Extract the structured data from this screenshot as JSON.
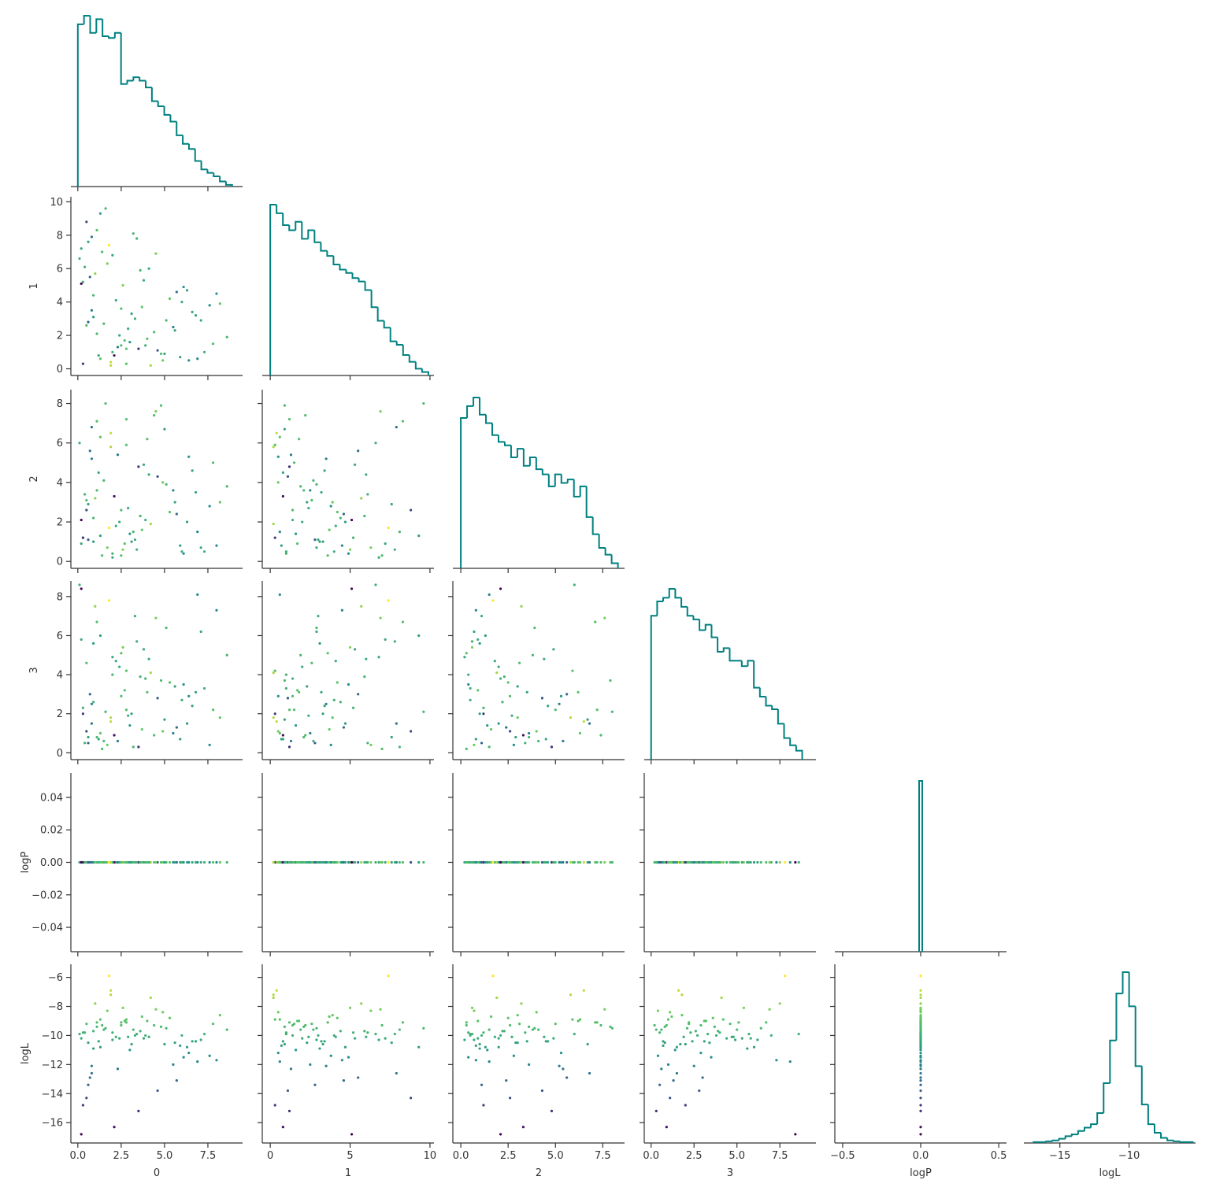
{
  "chart_data": {
    "type": "pairplot",
    "hist_color": "#008080",
    "colormap": [
      "#440154",
      "#3b528b",
      "#21918c",
      "#5ec962",
      "#fde725"
    ],
    "color_by": 5,
    "variables": [
      {
        "name": "0",
        "xlim": [
          -0.4,
          9.5
        ],
        "xticks": [
          {
            "value": 0,
            "label": "0.0"
          },
          {
            "value": 2.5,
            "label": "2.5"
          },
          {
            "value": 5,
            "label": "5.0"
          },
          {
            "value": 7.5,
            "label": "7.5"
          }
        ],
        "hist": {
          "bins": [
            0,
            0.356,
            0.712,
            1.068,
            1.424,
            1.78,
            2.136,
            2.492,
            2.848,
            3.204,
            3.56,
            3.916,
            4.272,
            4.628,
            4.984,
            5.34,
            5.696,
            6.052,
            6.408,
            6.764,
            7.12,
            7.476,
            7.832,
            8.188,
            8.544,
            8.9
          ],
          "counts": [
            95,
            100,
            90,
            98,
            88,
            87,
            90,
            60,
            62,
            64,
            62,
            58,
            50,
            47,
            42,
            38,
            30,
            25,
            22,
            15,
            10,
            8,
            6,
            3,
            1
          ]
        },
        "samples": [
          0.3,
          1.2,
          2.5,
          0.8,
          3.9,
          5.1,
          1.7,
          6.4,
          2.2,
          0.5,
          4.4,
          7.3,
          1.0,
          3.1,
          2.8,
          5.7,
          0.2,
          1.5,
          4.0,
          6.9,
          8.2,
          2.0,
          3.5,
          0.9,
          1.3,
          4.8,
          5.5,
          2.6,
          0.6,
          7.8,
          3.3,
          1.9,
          6.1,
          0.4,
          2.4,
          4.6,
          1.1,
          3.7,
          5.9,
          8.6,
          0.7,
          2.9,
          1.4,
          4.2,
          6.6,
          0.1,
          3.0,
          5.3,
          2.1,
          7.1,
          1.6,
          0.9,
          4.9,
          3.6,
          2.3,
          6.0,
          0.5,
          1.8,
          5.0,
          7.6,
          2.7,
          3.8,
          0.3,
          1.1,
          4.5,
          6.3,
          2.0,
          0.8,
          3.2,
          5.6,
          1.3,
          8.0,
          2.5,
          4.1,
          0.6,
          1.9,
          3.4,
          6.8,
          0.2,
          2.8
        ]
      },
      {
        "name": "1",
        "xlim": [
          -0.5,
          10.25
        ],
        "xticks": [
          0,
          5,
          10
        ],
        "ylim": [
          -0.4,
          10.3
        ],
        "yticks": [
          0,
          2,
          4,
          6,
          8,
          10
        ],
        "hist": {
          "bins": [
            0,
            0.396,
            0.792,
            1.188,
            1.584,
            1.98,
            2.376,
            2.772,
            3.168,
            3.564,
            3.96,
            4.356,
            4.752,
            5.148,
            5.544,
            5.94,
            6.336,
            6.732,
            7.128,
            7.524,
            7.92,
            8.316,
            8.712,
            9.108,
            9.504,
            9.9
          ],
          "counts": [
            100,
            95,
            88,
            85,
            90,
            80,
            85,
            78,
            73,
            70,
            65,
            62,
            60,
            57,
            55,
            50,
            40,
            32,
            28,
            20,
            18,
            12,
            8,
            4,
            2
          ]
        },
        "samples": [
          5.2,
          0.8,
          3.6,
          7.9,
          1.4,
          2.9,
          6.3,
          0.5,
          4.1,
          8.8,
          2.2,
          1.0,
          5.7,
          3.3,
          0.3,
          4.6,
          7.2,
          2.7,
          1.8,
          0.6,
          3.9,
          6.8,
          1.2,
          4.4,
          9.3,
          0.9,
          2.5,
          5.0,
          7.6,
          1.5,
          3.0,
          0.4,
          4.9,
          6.1,
          2.0,
          1.1,
          8.3,
          3.7,
          0.7,
          1.9,
          5.5,
          2.4,
          7.0,
          0.2,
          3.4,
          6.6,
          1.6,
          4.2,
          0.8,
          2.9,
          9.6,
          3.1,
          0.5,
          5.9,
          1.3,
          4.0,
          2.6,
          7.4,
          0.9,
          3.8,
          1.7,
          5.3,
          0.3,
          2.1,
          6.9,
          4.7,
          1.0,
          3.5,
          8.1,
          2.3,
          0.6,
          4.5,
          1.4,
          6.0,
          2.8,
          0.2,
          7.8,
          3.2,
          5.1,
          1.2
        ]
      },
      {
        "name": "2",
        "xlim": [
          -0.42,
          8.65
        ],
        "xticks": [
          {
            "value": 0,
            "label": "0.0"
          },
          {
            "value": 2.5,
            "label": "2.5"
          },
          {
            "value": 5,
            "label": "5.0"
          },
          {
            "value": 7.5,
            "label": "7.5"
          }
        ],
        "ylim": [
          -0.35,
          8.7
        ],
        "yticks": [
          0,
          2,
          4,
          6,
          8
        ],
        "hist": {
          "bins": [
            0,
            0.332,
            0.664,
            0.996,
            1.328,
            1.66,
            1.992,
            2.324,
            2.656,
            2.988,
            3.32,
            3.652,
            3.984,
            4.316,
            4.648,
            4.98,
            5.312,
            5.644,
            5.976,
            6.308,
            6.64,
            6.972,
            7.304,
            7.636,
            7.968,
            8.3
          ],
          "counts": [
            88,
            95,
            100,
            90,
            85,
            78,
            74,
            72,
            65,
            70,
            60,
            65,
            58,
            55,
            48,
            55,
            50,
            52,
            42,
            48,
            30,
            20,
            12,
            8,
            3
          ]
        },
        "samples": [
          1.2,
          4.5,
          0.3,
          6.8,
          2.1,
          3.9,
          0.7,
          5.3,
          1.8,
          2.6,
          7.4,
          0.5,
          3.2,
          1.0,
          5.9,
          2.4,
          0.9,
          4.1,
          6.2,
          1.5,
          3.0,
          0.2,
          4.8,
          2.2,
          1.3,
          7.9,
          3.6,
          0.6,
          2.9,
          5.0,
          1.1,
          6.5,
          0.4,
          3.4,
          2.0,
          4.3,
          7.1,
          1.6,
          0.8,
          3.8,
          5.6,
          2.7,
          0.3,
          1.9,
          4.6,
          6.0,
          1.4,
          2.5,
          3.3,
          0.7,
          8.0,
          1.0,
          4.0,
          2.3,
          5.4,
          0.5,
          3.1,
          1.7,
          6.7,
          2.8,
          0.9,
          4.9,
          1.2,
          3.6,
          7.6,
          2.0,
          0.4,
          5.2,
          1.5,
          3.0,
          6.3,
          0.8,
          2.6,
          4.4,
          1.1,
          5.8,
          0.6,
          3.5,
          2.1,
          7.2
        ]
      },
      {
        "name": "3",
        "xlim": [
          -0.4,
          9.6
        ],
        "xticks": [
          {
            "value": 0,
            "label": "0.0"
          },
          {
            "value": 2.5,
            "label": "2.5"
          },
          {
            "value": 5,
            "label": "5.0"
          },
          {
            "value": 7.5,
            "label": "7.5"
          }
        ],
        "ylim": [
          -0.35,
          8.8
        ],
        "yticks": [
          0,
          2,
          4,
          6,
          8
        ],
        "hist": {
          "bins": [
            0,
            0.352,
            0.704,
            1.056,
            1.408,
            1.76,
            2.112,
            2.464,
            2.816,
            3.168,
            3.52,
            3.872,
            4.224,
            4.576,
            4.928,
            5.28,
            5.632,
            5.984,
            6.336,
            6.688,
            7.04,
            7.392,
            7.744,
            8.096,
            8.448,
            8.8
          ],
          "counts": [
            80,
            88,
            90,
            95,
            90,
            85,
            80,
            78,
            72,
            75,
            68,
            60,
            62,
            55,
            55,
            52,
            55,
            40,
            35,
            30,
            28,
            20,
            12,
            8,
            5
          ]
        },
        "samples": [
          2.3,
          0.7,
          5.1,
          1.5,
          3.8,
          6.4,
          0.4,
          2.9,
          4.7,
          1.1,
          0.9,
          3.3,
          7.5,
          2.0,
          4.2,
          1.3,
          5.8,
          0.6,
          3.1,
          8.1,
          1.8,
          4.9,
          0.3,
          2.6,
          6.0,
          3.7,
          1.0,
          5.4,
          0.8,
          2.2,
          7.0,
          1.6,
          3.5,
          0.5,
          4.4,
          2.8,
          6.7,
          1.2,
          0.7,
          5.0,
          3.0,
          1.9,
          0.2,
          4.1,
          2.4,
          8.6,
          1.4,
          3.6,
          0.9,
          6.2,
          2.1,
          5.6,
          1.1,
          3.9,
          0.6,
          2.7,
          4.6,
          7.8,
          1.7,
          0.4,
          3.2,
          5.3,
          2.0,
          0.8,
          6.9,
          1.5,
          4.0,
          2.5,
          0.3,
          3.4,
          1.0,
          7.3,
          2.9,
          4.8,
          0.5,
          1.8,
          5.7,
          3.1,
          8.4,
          2.2
        ]
      },
      {
        "name": "logP",
        "xlim": [
          -0.55,
          0.55
        ],
        "xticks": [
          {
            "value": -0.5,
            "label": "−0.5"
          },
          {
            "value": 0,
            "label": "0.0"
          },
          {
            "value": 0.5,
            "label": "0.5"
          }
        ],
        "ylim": [
          -0.055,
          0.055
        ],
        "yticks": [
          0.04,
          0.02,
          {
            "value": 0,
            "label": "0.00"
          },
          {
            "value": -0.02,
            "label": "−0.02"
          },
          {
            "value": -0.04,
            "label": "−0.04"
          }
        ],
        "hist": {
          "bins": [
            -0.01,
            0.01
          ],
          "counts": [
            100
          ]
        },
        "samples": [
          0,
          0,
          0,
          0,
          0,
          0,
          0,
          0,
          0,
          0,
          0,
          0,
          0,
          0,
          0,
          0,
          0,
          0,
          0,
          0,
          0,
          0,
          0,
          0,
          0,
          0,
          0,
          0,
          0,
          0,
          0,
          0,
          0,
          0,
          0,
          0,
          0,
          0,
          0,
          0,
          0,
          0,
          0,
          0,
          0,
          0,
          0,
          0,
          0,
          0,
          0,
          0,
          0,
          0,
          0,
          0,
          0,
          0,
          0,
          0,
          0,
          0,
          0,
          0,
          0,
          0,
          0,
          0,
          0,
          0,
          0,
          0,
          0,
          0,
          0,
          0,
          0,
          0,
          0,
          0
        ]
      },
      {
        "name": "logL",
        "xlim": [
          -17.6,
          -5.2
        ],
        "xticks": [
          {
            "value": -15,
            "label": "−15"
          },
          {
            "value": -10,
            "label": "−10"
          }
        ],
        "ylim": [
          -17.4,
          -5.1
        ],
        "yticks": [
          {
            "value": -6,
            "label": "−6"
          },
          {
            "value": -8,
            "label": "−8"
          },
          {
            "value": -10,
            "label": "−10"
          },
          {
            "value": -12,
            "label": "−12"
          },
          {
            "value": -14,
            "label": "−14"
          },
          {
            "value": -16,
            "label": "−16"
          }
        ],
        "hist": {
          "bins": [
            -16.9,
            -16.44,
            -15.98,
            -15.52,
            -15.06,
            -14.6,
            -14.14,
            -13.68,
            -13.22,
            -12.76,
            -12.3,
            -11.84,
            -11.38,
            -10.92,
            -10.46,
            -10.0,
            -9.54,
            -9.08,
            -8.62,
            -8.16,
            -7.7,
            -7.24,
            -6.78,
            -6.32,
            -5.86,
            -5.4
          ],
          "counts": [
            1,
            1,
            2,
            3,
            5,
            8,
            10,
            14,
            18,
            22,
            35,
            70,
            120,
            175,
            200,
            160,
            90,
            45,
            22,
            12,
            6,
            3,
            2,
            1,
            1
          ]
        },
        "samples": [
          -9.8,
          -10.4,
          -9.1,
          -12.6,
          -10.0,
          -9.5,
          -8.3,
          -11.2,
          -10.1,
          -14.3,
          -9.3,
          -9.9,
          -7.8,
          -10.6,
          -8.9,
          -13.1,
          -10.2,
          -9.6,
          -9.0,
          -11.8,
          -8.6,
          -10.3,
          -15.2,
          -9.7,
          -10.8,
          -9.4,
          -12.0,
          -8.1,
          -10.5,
          -9.2,
          -10.0,
          -6.9,
          -11.5,
          -9.8,
          -10.2,
          -13.8,
          -9.1,
          -8.7,
          -10.7,
          -9.6,
          -12.9,
          -10.1,
          -9.3,
          -7.4,
          -10.4,
          -9.9,
          -11.0,
          -8.8,
          -16.3,
          -10.3,
          -9.5,
          -10.9,
          -8.4,
          -9.7,
          -12.3,
          -10.0,
          -9.2,
          -5.9,
          -10.6,
          -11.4,
          -9.0,
          -10.2,
          -14.8,
          -9.4,
          -8.2,
          -10.8,
          -9.8,
          -12.1,
          -9.6,
          -10.5,
          -8.9,
          -11.7,
          -9.3,
          -10.1,
          -13.4,
          -7.2,
          -9.9,
          -10.4,
          -16.8,
          -9.1
        ]
      }
    ]
  }
}
